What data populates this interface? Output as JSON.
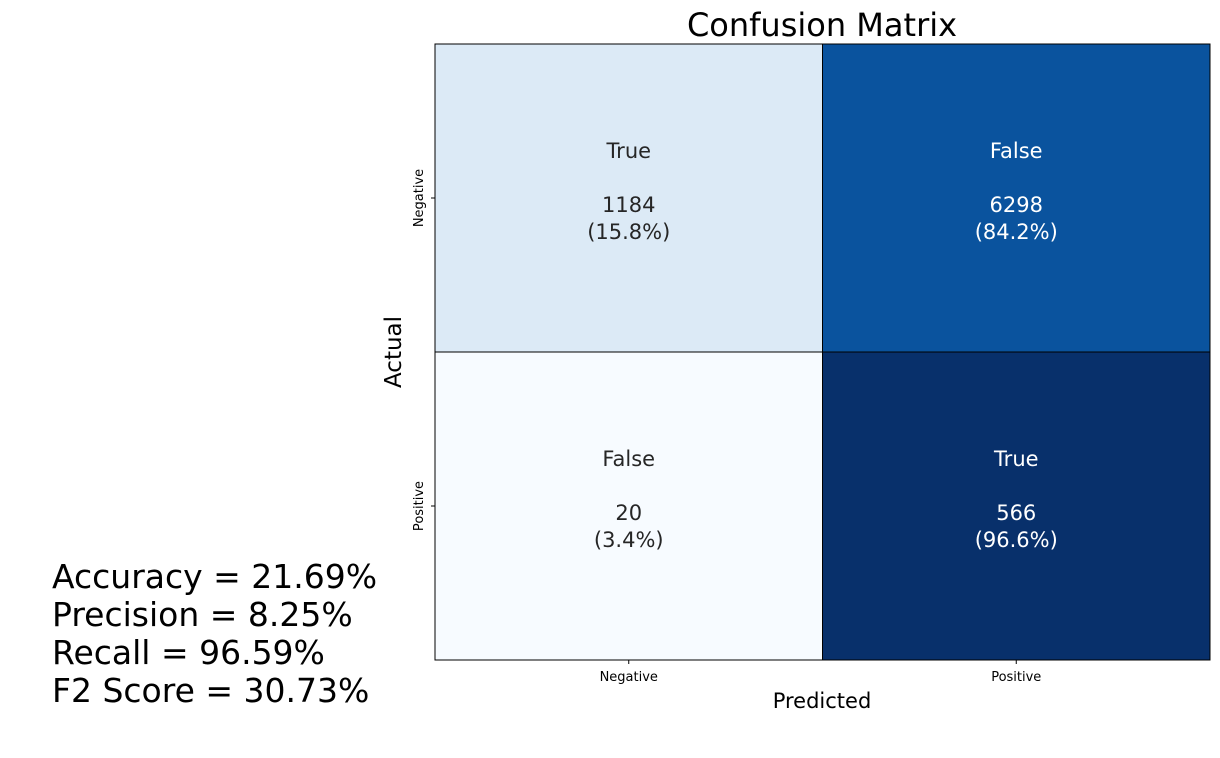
{
  "chart_data": {
    "type": "heatmap",
    "title": "Confusion Matrix",
    "xlabel": "Predicted",
    "ylabel": "Actual",
    "x_categories": [
      "Negative",
      "Positive"
    ],
    "y_categories": [
      "Negative",
      "Positive"
    ],
    "cells": [
      [
        {
          "label": "True",
          "count": "1184",
          "pct": "(15.8%)",
          "value": 0.158
        },
        {
          "label": "False",
          "count": "6298",
          "pct": "(84.2%)",
          "value": 0.842
        }
      ],
      [
        {
          "label": "False",
          "count": "20",
          "pct": "(3.4%)",
          "value": 0.034
        },
        {
          "label": "True",
          "count": "566",
          "pct": "(96.6%)",
          "value": 0.966
        }
      ]
    ],
    "colormap": "Blues",
    "colorbar": false,
    "grid": false
  },
  "metrics": [
    "Accuracy = 21.69%",
    "Precision = 8.25%",
    "Recall = 96.59%",
    "F2 Score = 30.73%"
  ]
}
